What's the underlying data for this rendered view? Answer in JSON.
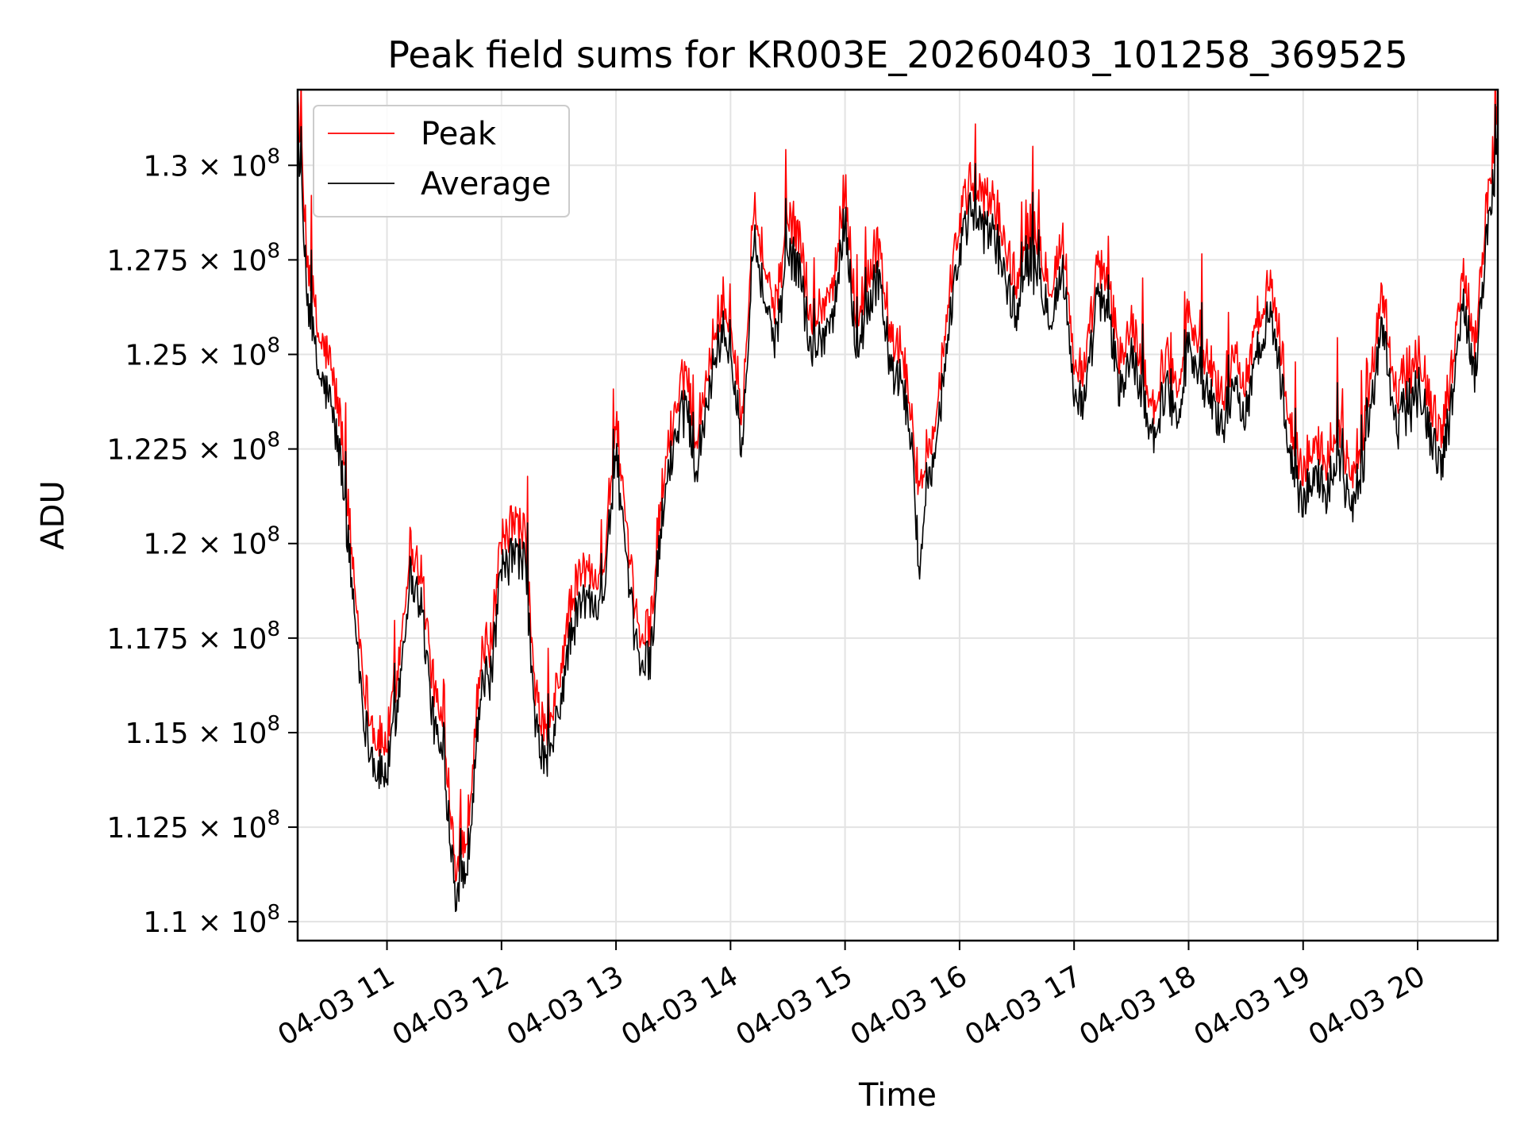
{
  "chart_data": {
    "type": "line",
    "title": "Peak field sums for KR003E_20260403_101258_369525",
    "xlabel": "Time",
    "ylabel": "ADU",
    "xlim": [
      10.22,
      20.7
    ],
    "ylim": [
      109500000,
      132000000
    ],
    "grid": true,
    "legend_position": "upper-left",
    "x_ticks": [
      {
        "value": 11,
        "label": "04-03 11"
      },
      {
        "value": 12,
        "label": "04-03 12"
      },
      {
        "value": 13,
        "label": "04-03 13"
      },
      {
        "value": 14,
        "label": "04-03 14"
      },
      {
        "value": 15,
        "label": "04-03 15"
      },
      {
        "value": 16,
        "label": "04-03 16"
      },
      {
        "value": 17,
        "label": "04-03 17"
      },
      {
        "value": 18,
        "label": "04-03 18"
      },
      {
        "value": 19,
        "label": "04-03 19"
      },
      {
        "value": 20,
        "label": "04-03 20"
      }
    ],
    "y_ticks": [
      {
        "value": 110000000,
        "mantissa": "1.1",
        "times": "×",
        "base": "10",
        "exponent": "8"
      },
      {
        "value": 112500000,
        "mantissa": "1.125",
        "times": "×",
        "base": "10",
        "exponent": "8"
      },
      {
        "value": 115000000,
        "mantissa": "1.15",
        "times": "×",
        "base": "10",
        "exponent": "8"
      },
      {
        "value": 117500000,
        "mantissa": "1.175",
        "times": "×",
        "base": "10",
        "exponent": "8"
      },
      {
        "value": 120000000,
        "mantissa": "1.2",
        "times": "×",
        "base": "10",
        "exponent": "8"
      },
      {
        "value": 122500000,
        "mantissa": "1.225",
        "times": "×",
        "base": "10",
        "exponent": "8"
      },
      {
        "value": 125000000,
        "mantissa": "1.25",
        "times": "×",
        "base": "10",
        "exponent": "8"
      },
      {
        "value": 127500000,
        "mantissa": "1.275",
        "times": "×",
        "base": "10",
        "exponent": "8"
      },
      {
        "value": 130000000,
        "mantissa": "1.3",
        "times": "×",
        "base": "10",
        "exponent": "8"
      }
    ],
    "x_hours": [
      10.22,
      10.3,
      10.4,
      10.5,
      10.6,
      10.7,
      10.8,
      10.9,
      11.0,
      11.1,
      11.2,
      11.3,
      11.4,
      11.5,
      11.55,
      11.6,
      11.7,
      11.8,
      11.85,
      11.9,
      12.0,
      12.1,
      12.2,
      12.3,
      12.4,
      12.5,
      12.6,
      12.7,
      12.8,
      12.9,
      13.0,
      13.1,
      13.2,
      13.3,
      13.4,
      13.5,
      13.6,
      13.7,
      13.8,
      13.9,
      14.0,
      14.1,
      14.2,
      14.3,
      14.4,
      14.5,
      14.6,
      14.7,
      14.8,
      14.9,
      15.0,
      15.1,
      15.2,
      15.3,
      15.4,
      15.5,
      15.6,
      15.65,
      15.7,
      15.8,
      15.9,
      16.0,
      16.1,
      16.2,
      16.3,
      16.4,
      16.5,
      16.6,
      16.7,
      16.8,
      16.9,
      17.0,
      17.1,
      17.2,
      17.3,
      17.4,
      17.5,
      17.6,
      17.7,
      17.8,
      17.9,
      18.0,
      18.1,
      18.2,
      18.3,
      18.4,
      18.5,
      18.6,
      18.7,
      18.8,
      18.9,
      19.0,
      19.1,
      19.2,
      19.3,
      19.4,
      19.5,
      19.6,
      19.7,
      19.8,
      19.9,
      20.0,
      20.1,
      20.2,
      20.3,
      20.4,
      20.5,
      20.6,
      20.7
    ],
    "series": [
      {
        "name": "Peak",
        "color": "#ff0000",
        "values": [
          131500000,
          127300000,
          125200000,
          124500000,
          122800000,
          119200000,
          116000000,
          114500000,
          114400000,
          116500000,
          119600000,
          118900000,
          116000000,
          114600000,
          113000000,
          111200000,
          112000000,
          116000000,
          117000000,
          116800000,
          119600000,
          120200000,
          120000000,
          115500000,
          114600000,
          116000000,
          118000000,
          119000000,
          118800000,
          119300000,
          123000000,
          119500000,
          117200000,
          117500000,
          121000000,
          123000000,
          124500000,
          122500000,
          124300000,
          125800000,
          125600000,
          123000000,
          128800000,
          127000000,
          125800000,
          128300000,
          127800000,
          125500000,
          126000000,
          126500000,
          129200000,
          125500000,
          126800000,
          127500000,
          125000000,
          124800000,
          122600000,
          120500000,
          122000000,
          123000000,
          126200000,
          128200000,
          129200000,
          128800000,
          128700000,
          127500000,
          126500000,
          128200000,
          127500000,
          126500000,
          127800000,
          124500000,
          124200000,
          127000000,
          126500000,
          124500000,
          125500000,
          124400000,
          123200000,
          124700000,
          123800000,
          125800000,
          124800000,
          124300000,
          123500000,
          124500000,
          124000000,
          125300000,
          126800000,
          125000000,
          122500000,
          121500000,
          122500000,
          121800000,
          123000000,
          121500000,
          122000000,
          124200000,
          126300000,
          123600000,
          124200000,
          125000000,
          123500000,
          122500000,
          124200000,
          127000000,
          125000000,
          128500000,
          131000000
        ]
      },
      {
        "name": "Average",
        "color": "#000000",
        "values": [
          131000000,
          126600000,
          124500000,
          123800000,
          122100000,
          118700000,
          115400000,
          114000000,
          113900000,
          116000000,
          119200000,
          118400000,
          115400000,
          114000000,
          112500000,
          110800000,
          111500000,
          115500000,
          116500000,
          116300000,
          119200000,
          119700000,
          119600000,
          115000000,
          114100000,
          115500000,
          117500000,
          118500000,
          118400000,
          118900000,
          122500000,
          119000000,
          116800000,
          117000000,
          120600000,
          122600000,
          124000000,
          122000000,
          123900000,
          125400000,
          125100000,
          122500000,
          128300000,
          126400000,
          125300000,
          127700000,
          127300000,
          125000000,
          125500000,
          126000000,
          128700000,
          125000000,
          126300000,
          127000000,
          124500000,
          124300000,
          122200000,
          118400000,
          121500000,
          122600000,
          125700000,
          127700000,
          128800000,
          128300000,
          128200000,
          127000000,
          126000000,
          127700000,
          127000000,
          126000000,
          127300000,
          124000000,
          123700000,
          126500000,
          126000000,
          124000000,
          125000000,
          123900000,
          122800000,
          124200000,
          123300000,
          125300000,
          124300000,
          123800000,
          123000000,
          124000000,
          123500000,
          124800000,
          126300000,
          124500000,
          122000000,
          121000000,
          122000000,
          121300000,
          122500000,
          121000000,
          121500000,
          123700000,
          125800000,
          123100000,
          123700000,
          124500000,
          123000000,
          122000000,
          123700000,
          126500000,
          124500000,
          128000000,
          130500000
        ]
      }
    ]
  }
}
